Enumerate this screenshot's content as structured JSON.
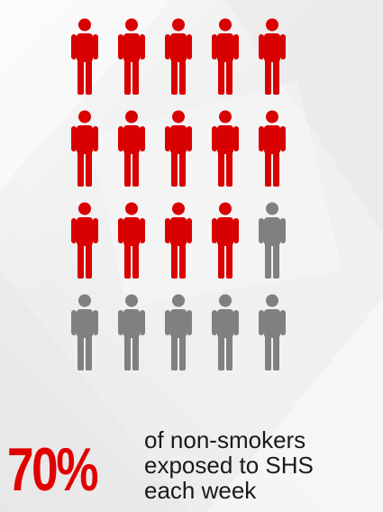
{
  "chart_data": {
    "type": "pictogram",
    "total_icons": 20,
    "highlighted_icons": 14,
    "rows": 4,
    "columns": 5,
    "highlight_color": "#d80000",
    "base_color": "#808080",
    "icon": "person-icon"
  },
  "stat": {
    "value": "70%",
    "line1": "of non-smokers",
    "line2": "exposed to SHS",
    "line3": "each week"
  }
}
